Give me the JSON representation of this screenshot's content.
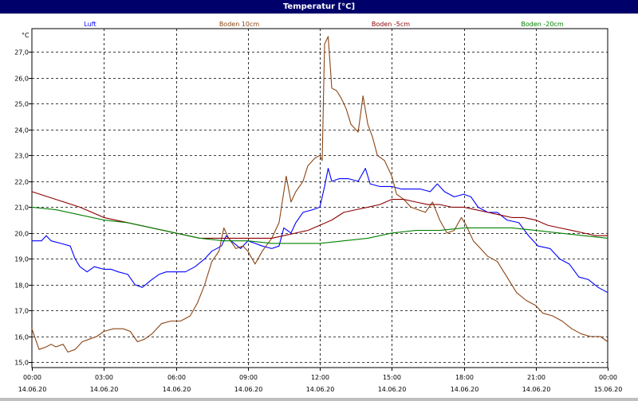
{
  "window": {
    "title": "Temperatur [°C]"
  },
  "chart_data": {
    "type": "line",
    "title": "Temperatur [°C]",
    "ylabel": "°C",
    "xlabel": "",
    "ylim": [
      14.8,
      27.9
    ],
    "yticks": [
      15.0,
      16.0,
      17.0,
      18.0,
      19.0,
      20.0,
      21.0,
      22.0,
      23.0,
      24.0,
      25.0,
      26.0,
      27.0
    ],
    "ytick_labels": [
      "15,0",
      "16,0",
      "17,0",
      "18,0",
      "19,0",
      "20,0",
      "21,0",
      "22,0",
      "23,0",
      "24,0",
      "25,0",
      "26,0",
      "27,0"
    ],
    "xlim": [
      0,
      24
    ],
    "xticks": [
      0,
      3,
      6,
      9,
      12,
      15,
      18,
      21,
      24
    ],
    "xtick_times": [
      "00:00",
      "03:00",
      "06:00",
      "09:00",
      "12:00",
      "15:00",
      "18:00",
      "21:00",
      "00:00"
    ],
    "xtick_dates": [
      "14.06.20",
      "14.06.20",
      "14.06.20",
      "14.06.20",
      "14.06.20",
      "14.06.20",
      "14.06.20",
      "14.06.20",
      "15.06.20"
    ],
    "grid": true,
    "legend_position": "top",
    "series": [
      {
        "name": "Luft",
        "color": "#0000ff",
        "points": [
          [
            0,
            19.7
          ],
          [
            0.4,
            19.7
          ],
          [
            0.6,
            19.9
          ],
          [
            0.8,
            19.7
          ],
          [
            1.2,
            19.6
          ],
          [
            1.6,
            19.5
          ],
          [
            1.8,
            19.0
          ],
          [
            2.0,
            18.7
          ],
          [
            2.3,
            18.5
          ],
          [
            2.6,
            18.7
          ],
          [
            3.0,
            18.6
          ],
          [
            3.3,
            18.6
          ],
          [
            3.6,
            18.5
          ],
          [
            4.0,
            18.4
          ],
          [
            4.3,
            18.0
          ],
          [
            4.6,
            17.9
          ],
          [
            5.0,
            18.2
          ],
          [
            5.3,
            18.4
          ],
          [
            5.6,
            18.5
          ],
          [
            6.0,
            18.5
          ],
          [
            6.4,
            18.5
          ],
          [
            6.8,
            18.7
          ],
          [
            7.2,
            19.0
          ],
          [
            7.5,
            19.3
          ],
          [
            7.9,
            19.5
          ],
          [
            8.1,
            19.9
          ],
          [
            8.3,
            19.7
          ],
          [
            8.7,
            19.4
          ],
          [
            9.0,
            19.7
          ],
          [
            9.3,
            19.6
          ],
          [
            9.6,
            19.5
          ],
          [
            10.0,
            19.4
          ],
          [
            10.3,
            19.5
          ],
          [
            10.5,
            20.2
          ],
          [
            10.8,
            20.0
          ],
          [
            11.0,
            20.4
          ],
          [
            11.3,
            20.8
          ],
          [
            11.7,
            20.9
          ],
          [
            12.0,
            21.0
          ],
          [
            12.2,
            21.8
          ],
          [
            12.35,
            22.5
          ],
          [
            12.5,
            22.0
          ],
          [
            12.8,
            22.1
          ],
          [
            13.2,
            22.1
          ],
          [
            13.6,
            22.0
          ],
          [
            13.9,
            22.5
          ],
          [
            14.1,
            21.9
          ],
          [
            14.5,
            21.8
          ],
          [
            15.0,
            21.8
          ],
          [
            15.4,
            21.7
          ],
          [
            15.8,
            21.7
          ],
          [
            16.2,
            21.7
          ],
          [
            16.6,
            21.6
          ],
          [
            16.9,
            21.9
          ],
          [
            17.2,
            21.6
          ],
          [
            17.6,
            21.4
          ],
          [
            18.0,
            21.5
          ],
          [
            18.3,
            21.4
          ],
          [
            18.6,
            21.0
          ],
          [
            19.0,
            20.8
          ],
          [
            19.4,
            20.8
          ],
          [
            19.8,
            20.5
          ],
          [
            20.3,
            20.4
          ],
          [
            20.7,
            19.9
          ],
          [
            21.1,
            19.5
          ],
          [
            21.6,
            19.4
          ],
          [
            22.0,
            19.0
          ],
          [
            22.4,
            18.8
          ],
          [
            22.8,
            18.3
          ],
          [
            23.2,
            18.2
          ],
          [
            23.6,
            17.9
          ],
          [
            24.0,
            17.7
          ]
        ]
      },
      {
        "name": "Boden 10cm",
        "color": "#8b4513",
        "points": [
          [
            0,
            16.3
          ],
          [
            0.3,
            15.5
          ],
          [
            0.6,
            15.6
          ],
          [
            0.8,
            15.7
          ],
          [
            1.0,
            15.6
          ],
          [
            1.3,
            15.7
          ],
          [
            1.5,
            15.4
          ],
          [
            1.8,
            15.5
          ],
          [
            2.1,
            15.8
          ],
          [
            2.4,
            15.9
          ],
          [
            2.7,
            16.0
          ],
          [
            3.0,
            16.2
          ],
          [
            3.4,
            16.3
          ],
          [
            3.8,
            16.3
          ],
          [
            4.1,
            16.2
          ],
          [
            4.4,
            15.8
          ],
          [
            4.7,
            15.9
          ],
          [
            5.0,
            16.1
          ],
          [
            5.4,
            16.5
          ],
          [
            5.8,
            16.6
          ],
          [
            6.2,
            16.6
          ],
          [
            6.6,
            16.8
          ],
          [
            6.9,
            17.3
          ],
          [
            7.2,
            18.0
          ],
          [
            7.5,
            18.9
          ],
          [
            7.8,
            19.3
          ],
          [
            8.0,
            20.2
          ],
          [
            8.2,
            19.8
          ],
          [
            8.5,
            19.4
          ],
          [
            8.8,
            19.5
          ],
          [
            9.0,
            19.3
          ],
          [
            9.3,
            18.8
          ],
          [
            9.6,
            19.3
          ],
          [
            10.0,
            19.8
          ],
          [
            10.3,
            20.4
          ],
          [
            10.6,
            22.2
          ],
          [
            10.8,
            21.2
          ],
          [
            11.0,
            21.6
          ],
          [
            11.3,
            22.0
          ],
          [
            11.5,
            22.6
          ],
          [
            11.8,
            22.9
          ],
          [
            12.0,
            23.0
          ],
          [
            12.1,
            22.8
          ],
          [
            12.2,
            27.3
          ],
          [
            12.35,
            27.6
          ],
          [
            12.5,
            25.6
          ],
          [
            12.7,
            25.5
          ],
          [
            12.9,
            25.2
          ],
          [
            13.1,
            24.8
          ],
          [
            13.3,
            24.2
          ],
          [
            13.6,
            23.9
          ],
          [
            13.8,
            25.3
          ],
          [
            14.0,
            24.2
          ],
          [
            14.2,
            23.7
          ],
          [
            14.4,
            23.0
          ],
          [
            14.7,
            22.8
          ],
          [
            15.0,
            22.2
          ],
          [
            15.2,
            21.5
          ],
          [
            15.5,
            21.3
          ],
          [
            15.8,
            21.0
          ],
          [
            16.1,
            20.9
          ],
          [
            16.4,
            20.8
          ],
          [
            16.7,
            21.2
          ],
          [
            17.0,
            20.5
          ],
          [
            17.3,
            20.0
          ],
          [
            17.6,
            20.1
          ],
          [
            17.9,
            20.6
          ],
          [
            18.1,
            20.3
          ],
          [
            18.4,
            19.7
          ],
          [
            18.7,
            19.4
          ],
          [
            19.0,
            19.1
          ],
          [
            19.4,
            18.9
          ],
          [
            19.8,
            18.3
          ],
          [
            20.2,
            17.7
          ],
          [
            20.6,
            17.4
          ],
          [
            21.0,
            17.2
          ],
          [
            21.3,
            16.9
          ],
          [
            21.7,
            16.8
          ],
          [
            22.1,
            16.6
          ],
          [
            22.5,
            16.3
          ],
          [
            22.9,
            16.1
          ],
          [
            23.3,
            16.0
          ],
          [
            23.7,
            16.0
          ],
          [
            24.0,
            15.8
          ]
        ]
      },
      {
        "name": "Boden -5cm",
        "color": "#8b0000",
        "points": [
          [
            0,
            21.6
          ],
          [
            1.0,
            21.3
          ],
          [
            2.0,
            21.0
          ],
          [
            3.0,
            20.6
          ],
          [
            4.0,
            20.4
          ],
          [
            5.0,
            20.2
          ],
          [
            6.0,
            20.0
          ],
          [
            7.0,
            19.8
          ],
          [
            8.0,
            19.8
          ],
          [
            9.0,
            19.8
          ],
          [
            10.0,
            19.8
          ],
          [
            10.5,
            19.9
          ],
          [
            11.0,
            20.0
          ],
          [
            11.5,
            20.1
          ],
          [
            12.0,
            20.3
          ],
          [
            12.5,
            20.5
          ],
          [
            13.0,
            20.8
          ],
          [
            13.5,
            20.9
          ],
          [
            14.0,
            21.0
          ],
          [
            14.5,
            21.1
          ],
          [
            15.0,
            21.3
          ],
          [
            15.5,
            21.3
          ],
          [
            16.0,
            21.2
          ],
          [
            16.5,
            21.1
          ],
          [
            17.0,
            21.1
          ],
          [
            17.5,
            21.0
          ],
          [
            18.0,
            21.0
          ],
          [
            18.5,
            20.9
          ],
          [
            19.0,
            20.8
          ],
          [
            19.5,
            20.7
          ],
          [
            20.0,
            20.6
          ],
          [
            20.5,
            20.6
          ],
          [
            21.0,
            20.5
          ],
          [
            21.5,
            20.3
          ],
          [
            22.0,
            20.2
          ],
          [
            22.5,
            20.1
          ],
          [
            23.0,
            20.0
          ],
          [
            23.5,
            19.9
          ],
          [
            24.0,
            19.9
          ]
        ]
      },
      {
        "name": "Boden -20cm",
        "color": "#008000",
        "points": [
          [
            0,
            21.0
          ],
          [
            1.0,
            20.9
          ],
          [
            2.0,
            20.7
          ],
          [
            3.0,
            20.5
          ],
          [
            4.0,
            20.4
          ],
          [
            5.0,
            20.2
          ],
          [
            6.0,
            20.0
          ],
          [
            7.0,
            19.8
          ],
          [
            8.0,
            19.7
          ],
          [
            9.0,
            19.7
          ],
          [
            10.0,
            19.6
          ],
          [
            11.0,
            19.6
          ],
          [
            12.0,
            19.6
          ],
          [
            13.0,
            19.7
          ],
          [
            14.0,
            19.8
          ],
          [
            15.0,
            20.0
          ],
          [
            16.0,
            20.1
          ],
          [
            17.0,
            20.1
          ],
          [
            18.0,
            20.2
          ],
          [
            19.0,
            20.2
          ],
          [
            20.0,
            20.2
          ],
          [
            21.0,
            20.1
          ],
          [
            22.0,
            20.0
          ],
          [
            23.0,
            19.9
          ],
          [
            24.0,
            19.8
          ]
        ]
      }
    ]
  }
}
